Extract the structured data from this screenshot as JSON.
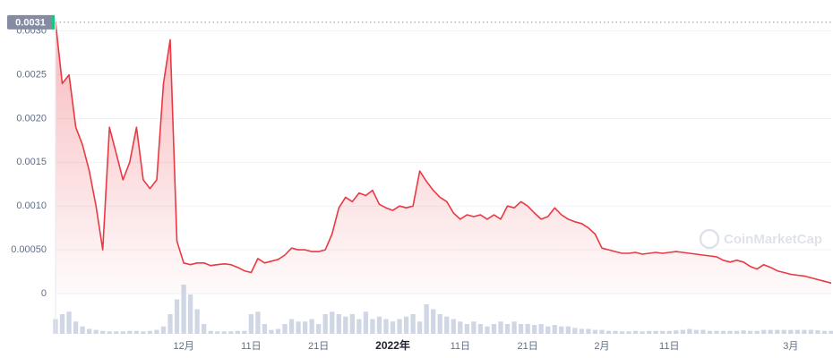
{
  "chart_data": {
    "type": "area",
    "reference_value": 0.0031,
    "watermark": "CoinMarketCap",
    "ylim": [
      0,
      0.00315
    ],
    "yticks": [
      0,
      {
        "value": 0.0005,
        "label": "0.00050"
      },
      {
        "value": 0.001,
        "label": "0.0010"
      },
      0.0015,
      {
        "value": 0.002,
        "label": "0.0020"
      },
      0.0025,
      {
        "value": 0.003,
        "label": "0.0030"
      }
    ],
    "y2lim": [
      0,
      100
    ],
    "grid": true,
    "categories": [
      null,
      null,
      null,
      null,
      null,
      null,
      null,
      null,
      null,
      null,
      null,
      null,
      null,
      null,
      null,
      null,
      null,
      null,
      null,
      "12月",
      null,
      null,
      null,
      null,
      null,
      null,
      null,
      null,
      null,
      "11日",
      null,
      null,
      null,
      null,
      null,
      null,
      null,
      null,
      null,
      "21日",
      null,
      null,
      null,
      null,
      null,
      null,
      null,
      null,
      null,
      null,
      "2022年",
      null,
      null,
      null,
      null,
      null,
      null,
      null,
      null,
      null,
      "11日",
      null,
      null,
      null,
      null,
      null,
      null,
      null,
      null,
      null,
      "21日",
      null,
      null,
      null,
      null,
      null,
      null,
      null,
      null,
      null,
      null,
      "2月",
      null,
      null,
      null,
      null,
      null,
      null,
      null,
      null,
      null,
      "11日",
      null,
      null,
      null,
      null,
      null,
      null,
      null,
      null,
      null,
      null,
      null,
      null,
      null,
      null,
      null,
      null,
      null,
      "3月",
      null,
      null,
      null,
      null,
      null,
      null
    ],
    "series": [
      {
        "color": "#ea3943",
        "values": [
          0.0031,
          0.0024,
          0.0025,
          0.0019,
          0.0017,
          0.0014,
          0.001,
          0.0005,
          0.0019,
          0.0016,
          0.0013,
          0.0015,
          0.0019,
          0.0013,
          0.0012,
          0.0013,
          0.0024,
          0.0029,
          0.0006,
          0.00035,
          0.00033,
          0.00035,
          0.00035,
          0.00032,
          0.00033,
          0.00034,
          0.00033,
          0.0003,
          0.00026,
          0.00024,
          0.0004,
          0.00035,
          0.00037,
          0.00039,
          0.00044,
          0.00052,
          0.0005,
          0.0005,
          0.00048,
          0.00048,
          0.0005,
          0.00068,
          0.00098,
          0.0011,
          0.00105,
          0.00115,
          0.00112,
          0.00118,
          0.00102,
          0.00098,
          0.00095,
          0.001,
          0.00098,
          0.001,
          0.0014,
          0.00128,
          0.00118,
          0.0011,
          0.00105,
          0.00092,
          0.00085,
          0.0009,
          0.00088,
          0.0009,
          0.00085,
          0.0009,
          0.00085,
          0.001,
          0.00098,
          0.00105,
          0.001,
          0.00092,
          0.00085,
          0.00088,
          0.00098,
          0.0009,
          0.00085,
          0.00082,
          0.0008,
          0.00075,
          0.00068,
          0.00052,
          0.0005,
          0.00048,
          0.00046,
          0.00046,
          0.00047,
          0.00045,
          0.00046,
          0.00047,
          0.00046,
          0.00047,
          0.00048,
          0.00047,
          0.00046,
          0.00045,
          0.00044,
          0.00043,
          0.00042,
          0.00038,
          0.00036,
          0.00038,
          0.00036,
          0.00031,
          0.00028,
          0.00033,
          0.0003,
          0.00026,
          0.00024,
          0.00022,
          0.00021,
          0.0002,
          0.00018,
          0.00016,
          0.00014,
          0.00012
        ]
      },
      {
        "color": "#cfd6e4",
        "axis": "y2",
        "values": [
          30,
          40,
          45,
          25,
          15,
          10,
          8,
          6,
          5,
          5,
          5,
          6,
          6,
          5,
          6,
          8,
          15,
          40,
          70,
          100,
          80,
          50,
          20,
          6,
          5,
          5,
          5,
          6,
          6,
          40,
          45,
          20,
          8,
          10,
          20,
          30,
          25,
          25,
          30,
          20,
          40,
          45,
          40,
          35,
          40,
          30,
          45,
          30,
          35,
          30,
          25,
          30,
          35,
          40,
          25,
          60,
          50,
          40,
          35,
          30,
          25,
          20,
          25,
          20,
          15,
          20,
          25,
          20,
          25,
          20,
          20,
          18,
          20,
          15,
          18,
          15,
          15,
          12,
          10,
          10,
          8,
          8,
          6,
          6,
          5,
          5,
          6,
          5,
          6,
          6,
          6,
          6,
          7,
          8,
          10,
          8,
          8,
          6,
          6,
          6,
          6,
          6,
          7,
          6,
          6,
          8,
          8,
          8,
          8,
          8,
          8,
          8,
          8,
          7,
          6,
          6
        ]
      }
    ]
  }
}
